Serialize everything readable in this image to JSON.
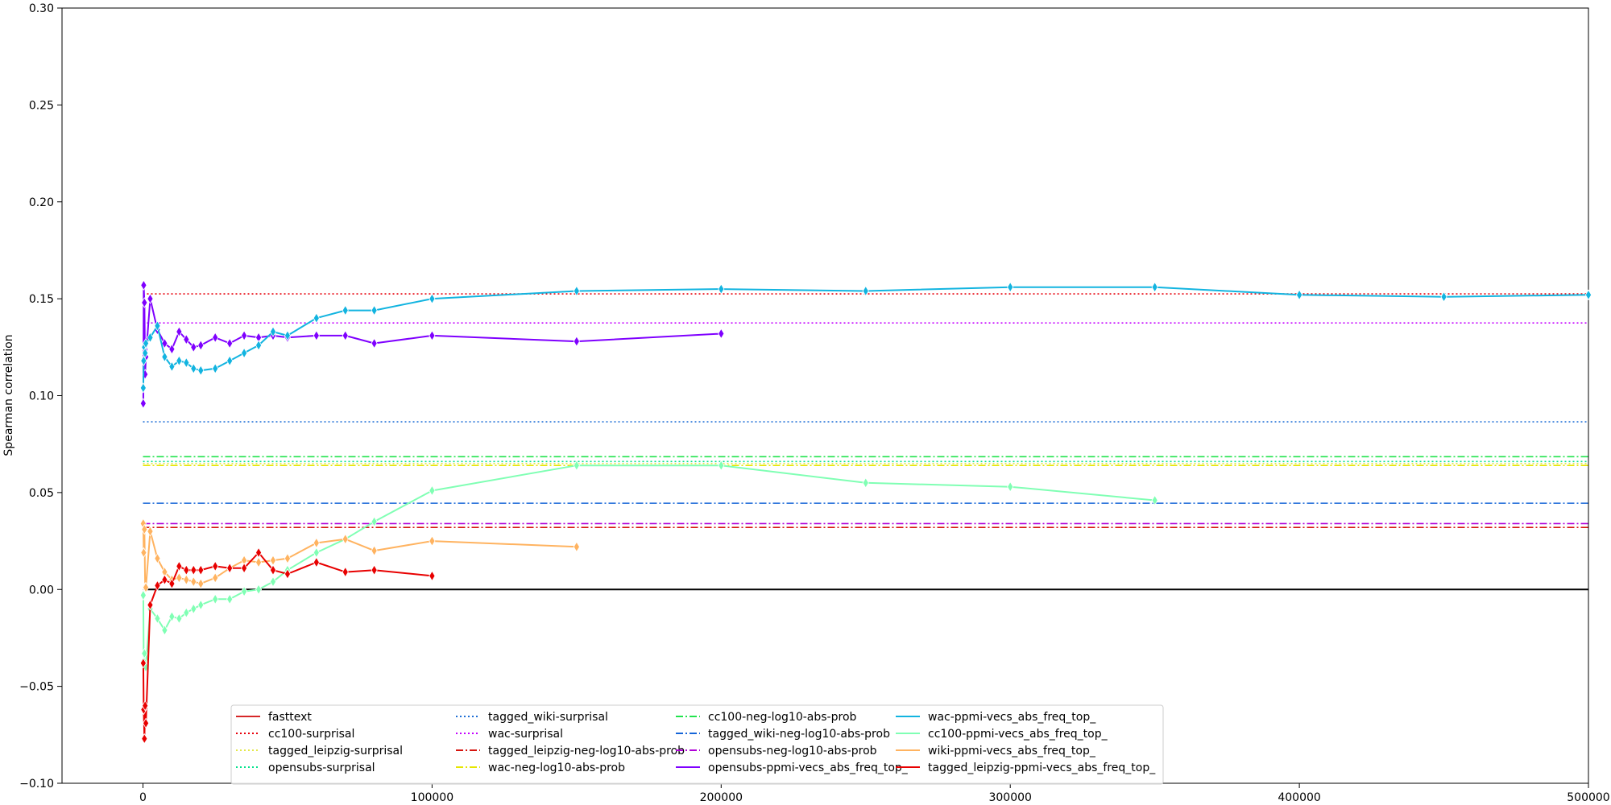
{
  "chart_data": {
    "type": "line",
    "title": "",
    "xlabel": "",
    "ylabel": "Spearman correlation",
    "xlim": [
      -28000,
      500000
    ],
    "ylim": [
      -0.1,
      0.3
    ],
    "xticks": [
      0,
      100000,
      200000,
      300000,
      400000,
      500000
    ],
    "xtick_labels": [
      "0",
      "100000",
      "200000",
      "300000",
      "400000",
      "500000"
    ],
    "yticks": [
      -0.1,
      -0.05,
      0.0,
      0.05,
      0.1,
      0.15,
      0.2,
      0.25,
      0.3
    ],
    "ytick_labels": [
      "−0.10",
      "−0.05",
      "0.00",
      "0.05",
      "0.10",
      "0.15",
      "0.20",
      "0.25",
      "0.30"
    ],
    "grid": false,
    "legend_position": "lower-center",
    "legend_columns": 5,
    "zero_line": {
      "y": 0.0,
      "color": "#000000"
    },
    "legend": [
      {
        "label": "fasttext",
        "color": "#d62728",
        "style": "solid"
      },
      {
        "label": "cc100-surprisal",
        "color": "#e8000b",
        "style": "dotted"
      },
      {
        "label": "tagged_leipzig-surprisal",
        "color": "#e3e84a",
        "style": "dotted"
      },
      {
        "label": "opensubs-surprisal",
        "color": "#00e38b",
        "style": "dotted"
      },
      {
        "label": "tagged_wiki-surprisal",
        "color": "#1f6fd6",
        "style": "dotted"
      },
      {
        "label": "wac-surprisal",
        "color": "#c400ff",
        "style": "dotted"
      },
      {
        "label": "tagged_leipzig-neg-log10-abs-prob",
        "color": "#d6150f",
        "style": "dashdot"
      },
      {
        "label": "wac-neg-log10-abs-prob",
        "color": "#e6e600",
        "style": "dashdot"
      },
      {
        "label": "cc100-neg-log10-abs-prob",
        "color": "#22e34d",
        "style": "dashdot"
      },
      {
        "label": "tagged_wiki-neg-log10-abs-prob",
        "color": "#1565d8",
        "style": "dashdot"
      },
      {
        "label": "opensubs-neg-log10-abs-prob",
        "color": "#b000d8",
        "style": "dashdot"
      },
      {
        "label": "opensubs-ppmi-vecs_abs_freq_top_",
        "color": "#7f00ff",
        "style": "solid"
      },
      {
        "label": "wac-ppmi-vecs_abs_freq_top_",
        "color": "#12b4e0",
        "style": "solid"
      },
      {
        "label": "cc100-ppmi-vecs_abs_freq_top_",
        "color": "#80ffb4",
        "style": "solid"
      },
      {
        "label": "wiki-ppmi-vecs_abs_freq_top_",
        "color": "#ffb360",
        "style": "solid"
      },
      {
        "label": "tagged_leipzig-ppmi-vecs_abs_freq_top_",
        "color": "#e80000",
        "style": "solid"
      }
    ],
    "hlines": [
      {
        "name": "cc100-surprisal",
        "y": 0.1525,
        "color": "#e8000b",
        "style": "dotted"
      },
      {
        "name": "wac-surprisal",
        "y": 0.1375,
        "color": "#c400ff",
        "style": "dotted"
      },
      {
        "name": "tagged_wiki-surprisal",
        "y": 0.0865,
        "color": "#1f6fd6",
        "style": "dotted"
      },
      {
        "name": "cc100-neg-log10-abs-prob",
        "y": 0.0685,
        "color": "#22e34d",
        "style": "dashdot"
      },
      {
        "name": "opensubs-surprisal",
        "y": 0.066,
        "color": "#00e38b",
        "style": "dotted"
      },
      {
        "name": "tagged_leipzig-surprisal",
        "y": 0.065,
        "color": "#e3e84a",
        "style": "dotted"
      },
      {
        "name": "wac-neg-log10-abs-prob",
        "y": 0.064,
        "color": "#e6e600",
        "style": "dashdot"
      },
      {
        "name": "tagged_wiki-neg-log10-abs-prob",
        "y": 0.0445,
        "color": "#1565d8",
        "style": "dashdot"
      },
      {
        "name": "opensubs-neg-log10-abs-prob",
        "y": 0.034,
        "color": "#b000d8",
        "style": "dashdot"
      },
      {
        "name": "tagged_leipzig-neg-log10-abs-prob",
        "y": 0.032,
        "color": "#d6150f",
        "style": "dashdot"
      }
    ],
    "series": [
      {
        "name": "opensubs-ppmi-vecs_abs_freq_top_",
        "color": "#7f00ff",
        "marker": "diamond",
        "x": [
          100,
          250,
          500,
          750,
          1000,
          2500,
          5000,
          7500,
          10000,
          12500,
          15000,
          17500,
          20000,
          25000,
          30000,
          35000,
          40000,
          45000,
          50000,
          60000,
          70000,
          80000,
          100000,
          150000,
          200000
        ],
        "y": [
          0.096,
          0.157,
          0.148,
          0.111,
          0.12,
          0.15,
          0.134,
          0.127,
          0.124,
          0.133,
          0.129,
          0.125,
          0.126,
          0.13,
          0.127,
          0.131,
          0.13,
          0.131,
          0.13,
          0.131,
          0.131,
          0.127,
          0.131,
          0.128,
          0.132
        ]
      },
      {
        "name": "wac-ppmi-vecs_abs_freq_top_",
        "color": "#12b4e0",
        "marker": "diamond",
        "x": [
          100,
          250,
          500,
          750,
          1000,
          2500,
          5000,
          7500,
          10000,
          12500,
          15000,
          17500,
          20000,
          25000,
          30000,
          35000,
          40000,
          45000,
          50000,
          60000,
          70000,
          80000,
          100000,
          150000,
          200000,
          250000,
          300000,
          350000,
          400000,
          450000,
          500000
        ],
        "y": [
          0.104,
          0.118,
          0.125,
          0.122,
          0.127,
          0.13,
          0.136,
          0.12,
          0.115,
          0.118,
          0.117,
          0.114,
          0.113,
          0.114,
          0.118,
          0.122,
          0.126,
          0.133,
          0.131,
          0.14,
          0.144,
          0.144,
          0.15,
          0.154,
          0.155,
          0.154,
          0.156,
          0.156,
          0.152,
          0.151,
          0.152
        ]
      },
      {
        "name": "cc100-ppmi-vecs_abs_freq_top_",
        "color": "#80ffb4",
        "marker": "diamond",
        "x": [
          100,
          250,
          500,
          750,
          1000,
          2500,
          5000,
          7500,
          10000,
          12500,
          15000,
          17500,
          20000,
          25000,
          30000,
          35000,
          40000,
          45000,
          50000,
          60000,
          70000,
          80000,
          100000,
          150000,
          200000,
          250000,
          300000,
          350000
        ],
        "y": [
          -0.003,
          -0.037,
          -0.033,
          -0.04,
          -0.04,
          -0.01,
          -0.015,
          -0.021,
          -0.014,
          -0.015,
          -0.012,
          -0.01,
          -0.008,
          -0.005,
          -0.005,
          -0.001,
          0.0,
          0.004,
          0.01,
          0.019,
          0.026,
          0.035,
          0.051,
          0.064,
          0.064,
          0.055,
          0.053,
          0.046
        ]
      },
      {
        "name": "wiki-ppmi-vecs_abs_freq_top_",
        "color": "#ffb360",
        "marker": "diamond",
        "x": [
          100,
          250,
          500,
          750,
          1000,
          2500,
          5000,
          7500,
          10000,
          12500,
          15000,
          17500,
          20000,
          25000,
          30000,
          35000,
          40000,
          45000,
          50000,
          60000,
          70000,
          80000,
          100000,
          150000
        ],
        "y": [
          0.034,
          0.019,
          0.031,
          0.001,
          0.001,
          0.03,
          0.016,
          0.009,
          0.005,
          0.006,
          0.005,
          0.004,
          0.003,
          0.006,
          0.011,
          0.015,
          0.014,
          0.015,
          0.016,
          0.024,
          0.026,
          0.02,
          0.025,
          0.022
        ]
      },
      {
        "name": "tagged_leipzig-ppmi-vecs_abs_freq_top_",
        "color": "#e80000",
        "marker": "diamond",
        "x": [
          100,
          250,
          500,
          750,
          1000,
          2500,
          5000,
          7500,
          10000,
          12500,
          15000,
          17500,
          20000,
          25000,
          30000,
          35000,
          40000,
          45000,
          50000,
          60000,
          70000,
          80000,
          100000
        ],
        "y": [
          -0.038,
          -0.062,
          -0.077,
          -0.06,
          -0.069,
          -0.008,
          0.002,
          0.005,
          0.003,
          0.012,
          0.01,
          0.01,
          0.01,
          0.012,
          0.011,
          0.011,
          0.019,
          0.01,
          0.008,
          0.014,
          0.009,
          0.01,
          0.007
        ]
      }
    ]
  }
}
